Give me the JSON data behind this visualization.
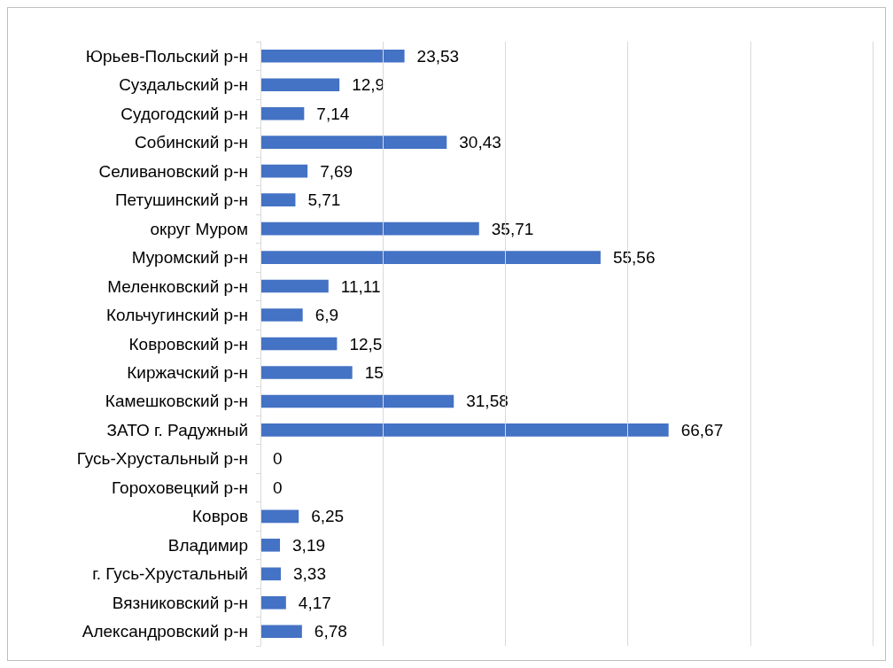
{
  "chart_data": {
    "type": "bar",
    "orientation": "horizontal",
    "categories": [
      "Юрьев-Польский р-н",
      "Суздальский р-н",
      "Судогодский р-н",
      "Собинский р-н",
      "Селивановский р-н",
      "Петушинский р-н",
      "округ Муром",
      "Муромский р-н",
      "Меленковский р-н",
      "Кольчугинский р-н",
      "Ковровский р-н",
      "Киржачский р-н",
      "Камешковский р-н",
      "ЗАТО г. Радужный",
      "Гусь-Хрустальный р-н",
      "Гороховецкий р-н",
      "Ковров",
      "Владимир",
      "г. Гусь-Хрустальный",
      "Вязниковский р-н",
      "Александровский р-н"
    ],
    "values": [
      23.53,
      12.9,
      7.14,
      30.43,
      7.69,
      5.71,
      35.71,
      55.56,
      11.11,
      6.9,
      12.5,
      15,
      31.58,
      66.67,
      0,
      0,
      6.25,
      3.19,
      3.33,
      4.17,
      6.78
    ],
    "value_labels": [
      "23,53",
      "12,9",
      "7,14",
      "30,43",
      "7,69",
      "5,71",
      "35,71",
      "55,56",
      "11,11",
      "6,9",
      "12,5",
      "15",
      "31,58",
      "66,67",
      "0",
      "0",
      "6,25",
      "3,19",
      "3,33",
      "4,17",
      "6,78"
    ],
    "color": "#4472c4",
    "xlim": [
      0,
      100
    ],
    "xticks": [
      {
        "value": 0,
        "label": null
      },
      {
        "value": 20,
        "label": null
      },
      {
        "value": 40,
        "label": null
      },
      {
        "value": 60,
        "label": null
      },
      {
        "value": 80,
        "label": null
      },
      {
        "value": 100,
        "label": null
      }
    ],
    "grid": "x",
    "tick_labels": "y"
  }
}
